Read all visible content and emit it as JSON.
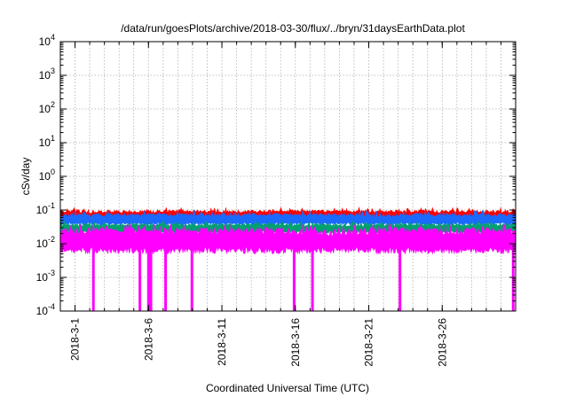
{
  "chart_data": {
    "type": "area",
    "title": "/data/run/goesPlots/archive/2018-03-30/flux/../bryn/31daysEarthData.plot",
    "xlabel": "Coordinated Universal Time (UTC)",
    "ylabel": "cSv/day",
    "y_scale": "log",
    "ylim": [
      0.0001,
      10000
    ],
    "y_ticks": [
      {
        "value": 0.0001,
        "base": "10",
        "exp": "-4"
      },
      {
        "value": 0.001,
        "base": "10",
        "exp": "-3"
      },
      {
        "value": 0.01,
        "base": "10",
        "exp": "-2"
      },
      {
        "value": 0.1,
        "base": "10",
        "exp": "-1"
      },
      {
        "value": 1,
        "base": "10",
        "exp": "0"
      },
      {
        "value": 10,
        "base": "10",
        "exp": "1"
      },
      {
        "value": 100,
        "base": "10",
        "exp": "2"
      },
      {
        "value": 1000,
        "base": "10",
        "exp": "3"
      },
      {
        "value": 10000,
        "base": "10",
        "exp": "4"
      }
    ],
    "xlim": [
      "2018-02-28T00:00",
      "2018-03-30T23:59"
    ],
    "x_ticks": [
      {
        "date": "2018-03-01",
        "label": "2018-3-1"
      },
      {
        "date": "2018-03-06",
        "label": "2018-3-6"
      },
      {
        "date": "2018-03-11",
        "label": "2018-3-11"
      },
      {
        "date": "2018-03-16",
        "label": "2018-3-16"
      },
      {
        "date": "2018-03-21",
        "label": "2018-3-21"
      },
      {
        "date": "2018-03-26",
        "label": "2018-3-26"
      }
    ],
    "grid": true,
    "series": [
      {
        "color": "#ff0000",
        "typical_low": 0.05,
        "typical_high": 0.1,
        "peak": 0.12
      },
      {
        "color": "#1a6aff",
        "typical_low": 0.035,
        "typical_high": 0.08,
        "peak": 0.1
      },
      {
        "color": "#00a070",
        "typical_low": 0.02,
        "typical_high": 0.04,
        "peak": 0.05
      },
      {
        "color": "#ff00ff",
        "typical_low": 0.005,
        "typical_high": 0.03,
        "peak": 0.04,
        "dropouts": [
          "2018-03-02T06:00",
          "2018-03-05T10:00",
          "2018-03-06T00:00",
          "2018-03-06T04:00",
          "2018-03-07T04:00",
          "2018-03-08T23:00",
          "2018-03-15T22:00",
          "2018-03-17T04:00",
          "2018-03-23T03:00",
          "2018-03-30T20:00"
        ]
      }
    ]
  }
}
